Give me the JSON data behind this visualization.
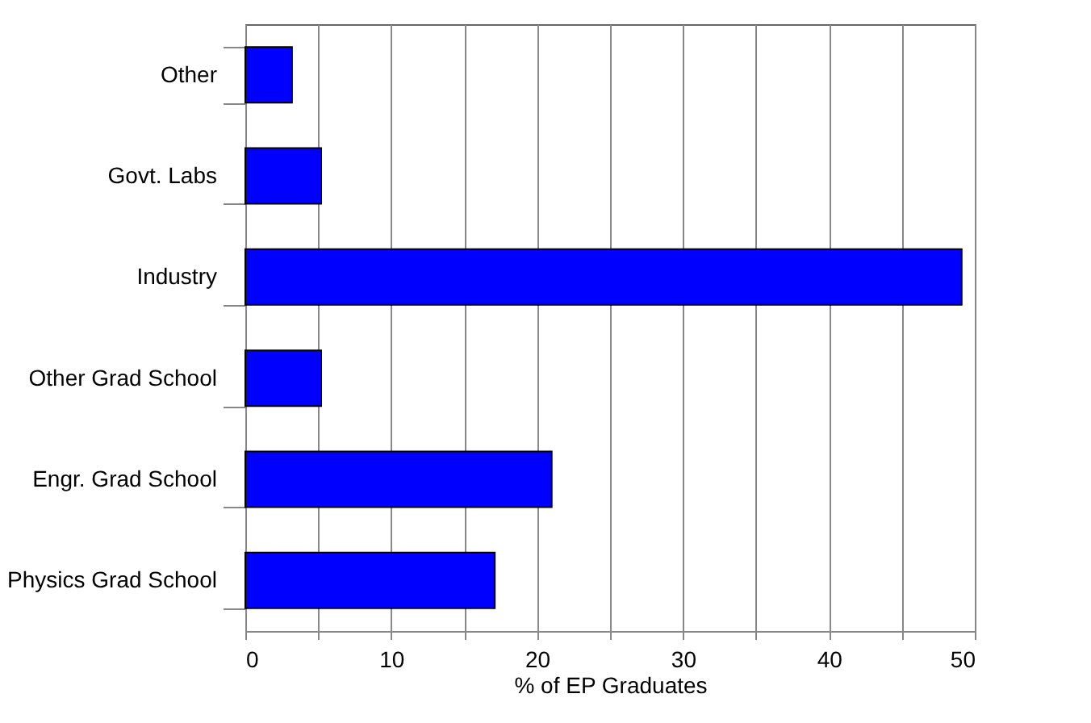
{
  "chart_data": {
    "type": "bar",
    "orientation": "horizontal",
    "xlabel": "% of EP Graduates",
    "categories": [
      "Other",
      "Govt. Labs",
      "Industry",
      "Other Grad School",
      "Engr. Grad School",
      "Physics Grad School"
    ],
    "values": [
      3.2,
      5.2,
      49.1,
      5.2,
      21.0,
      17.1
    ],
    "color": "#0000ff",
    "xlim": [
      0,
      50
    ],
    "xticks": [
      0,
      {
        "value": 5,
        "label": null
      },
      10,
      {
        "value": 15,
        "label": null
      },
      20,
      {
        "value": 25,
        "label": null
      },
      30,
      {
        "value": 35,
        "label": null
      },
      40,
      {
        "value": 45,
        "label": null
      },
      50
    ],
    "grid": "x"
  }
}
